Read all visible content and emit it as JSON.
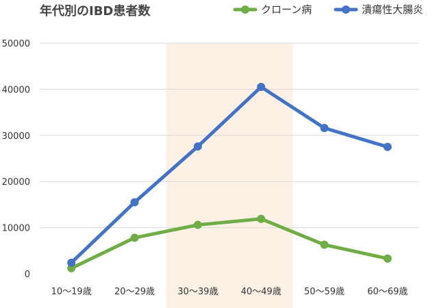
{
  "chart_data": {
    "type": "line",
    "title": "年代別のIBD患者数",
    "categories": [
      "10〜19歳",
      "20〜29歳",
      "30〜39歳",
      "40〜49歳",
      "50〜59歳",
      "60〜69歳"
    ],
    "series": [
      {
        "name": "クローン病",
        "color": "#70ad47",
        "values": [
          1200,
          7800,
          10600,
          11900,
          6300,
          3300
        ]
      },
      {
        "name": "潰瘍性大腸炎",
        "color": "#4472c4",
        "values": [
          2400,
          15500,
          27600,
          40500,
          31600,
          27500
        ]
      }
    ],
    "ylim": [
      0,
      50000
    ],
    "yticks": [
      0,
      10000,
      20000,
      30000,
      40000,
      50000
    ],
    "highlight_categories": [
      "30〜39歳",
      "40〜49歳"
    ],
    "highlight_color": "#fdf1e6",
    "grid": true,
    "legend_position": "top-right"
  }
}
